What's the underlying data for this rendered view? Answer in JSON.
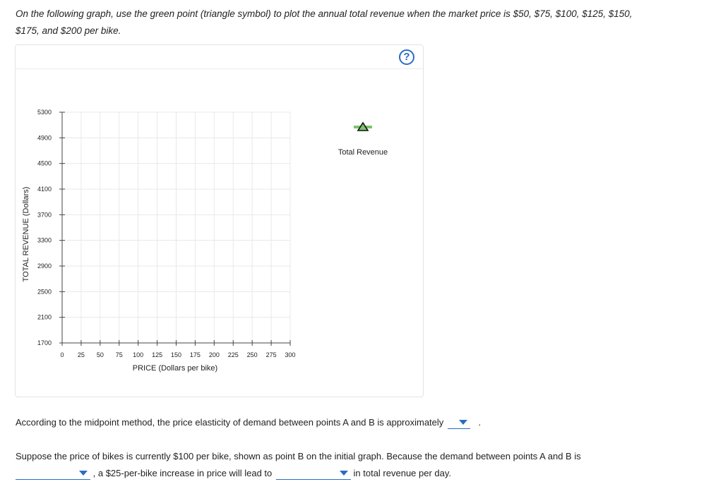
{
  "instructions": {
    "line1": "On the following graph, use the green point (triangle symbol) to plot the annual total revenue when the market price is $50, $75, $100, $125, $150,",
    "line2": "$175, and $200 per bike."
  },
  "help_icon": {
    "symbol": "?",
    "color": "#2a6cc4"
  },
  "chart_data": {
    "type": "scatter",
    "title": "",
    "xlabel": "PRICE (Dollars per bike)",
    "ylabel": "TOTAL REVENUE (Dollars)",
    "xlim": [
      0,
      300
    ],
    "ylim": [
      1700,
      5300
    ],
    "x_ticks": [
      0,
      25,
      50,
      75,
      100,
      125,
      150,
      175,
      200,
      225,
      250,
      275,
      300
    ],
    "y_ticks": [
      1700,
      2100,
      2500,
      2900,
      3300,
      3700,
      4100,
      4500,
      4900,
      5300
    ],
    "grid": true,
    "series": [
      {
        "name": "Total Revenue",
        "marker": "triangle",
        "color": "#2d7a2d",
        "palette_color": "#7ec36b",
        "points": []
      }
    ],
    "legend": "right"
  },
  "question1": {
    "text": "According to the midpoint method, the price elasticity of demand between points A and B is approximately",
    "end": ".",
    "dropdown_value": ""
  },
  "question2": {
    "text_a": "Suppose the price of bikes is currently $100 per bike, shown as point B on the initial graph. Because the demand between points A and B is",
    "text_b": ", a $25-per-bike increase in price will lead to",
    "text_c": "in total revenue per day.",
    "dropdown1_value": "",
    "dropdown2_value": ""
  },
  "colors": {
    "accent": "#2a6cc4",
    "grid": "#e8e8e8",
    "axis": "#444444"
  }
}
